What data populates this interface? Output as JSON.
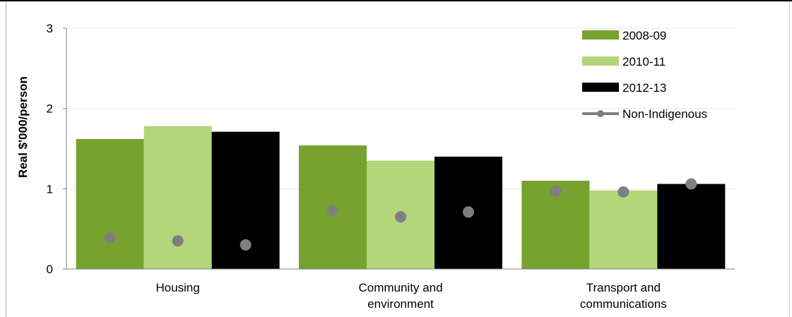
{
  "chart_data": {
    "type": "bar",
    "title": "",
    "xlabel": "",
    "ylabel": "Real $'000/person",
    "ylim": [
      0,
      3
    ],
    "yticks": [
      "0",
      "1",
      "2",
      "3"
    ],
    "grid": true,
    "legend_position": "top-right",
    "categories": [
      [
        "Housing"
      ],
      [
        "Community and",
        "environment"
      ],
      [
        "Transport and",
        "communications"
      ]
    ],
    "series": [
      {
        "name": "2008-09",
        "color": "#77a22f",
        "values": [
          1.62,
          1.54,
          1.1
        ]
      },
      {
        "name": "2010-11",
        "color": "#b3d67a",
        "values": [
          1.78,
          1.35,
          0.98
        ]
      },
      {
        "name": "2012-13",
        "color": "#000000",
        "values": [
          1.71,
          1.4,
          1.06
        ]
      }
    ],
    "markers": {
      "name": "Non-Indigenous",
      "color": "#7f7f7f",
      "values": [
        [
          0.39,
          0.35,
          0.3
        ],
        [
          0.73,
          0.65,
          0.71
        ],
        [
          0.97,
          0.96,
          1.06
        ]
      ]
    }
  }
}
